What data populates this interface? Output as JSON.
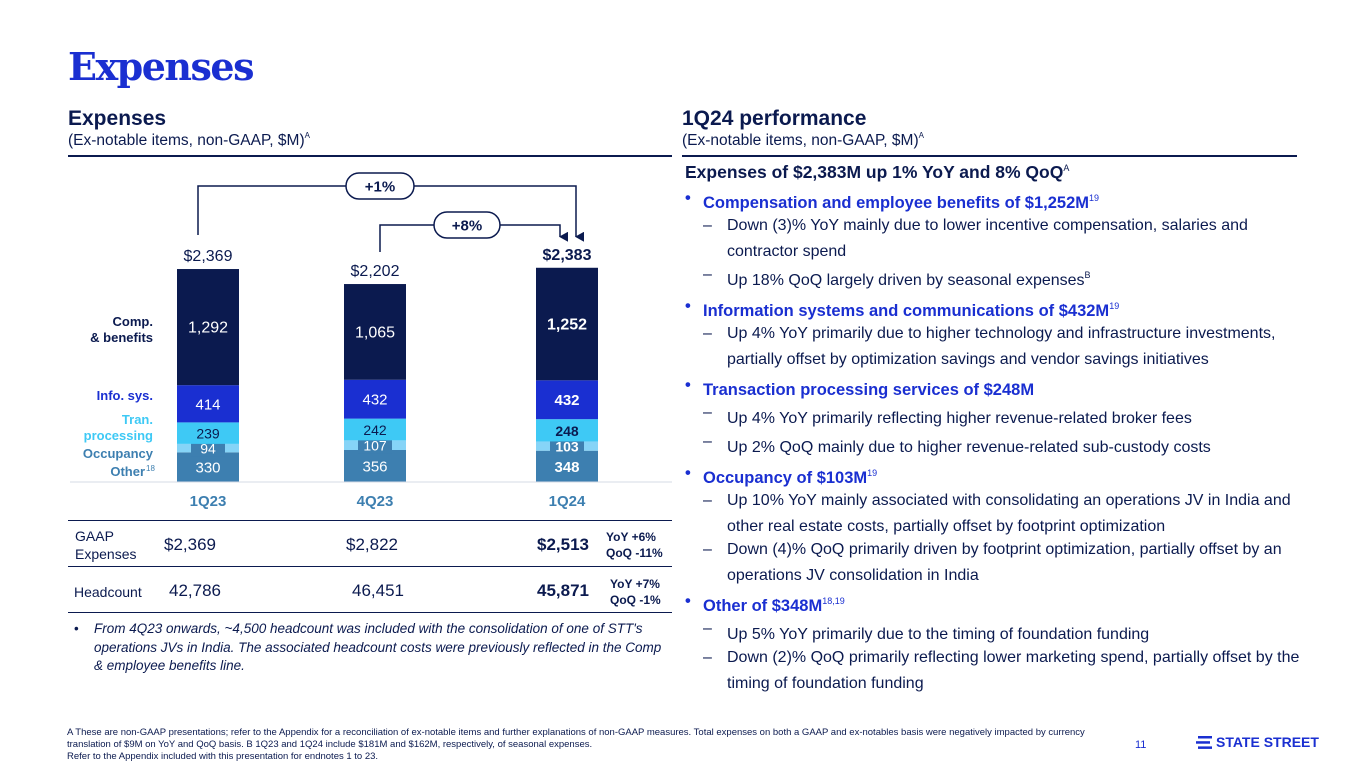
{
  "page_title": "Expenses",
  "left": {
    "heading": "Expenses",
    "sub": "(Ex-notable items, non-GAAP, $M)",
    "sub_sup": "A"
  },
  "right": {
    "heading": "1Q24 performance",
    "sub": "(Ex-notable items, non-GAAP, $M)",
    "sub_sup": "A"
  },
  "chart_data": {
    "type": "bar",
    "stacked": true,
    "categories": [
      "1Q23",
      "4Q23",
      "1Q24"
    ],
    "series": [
      {
        "name": "Other",
        "values": [
          330,
          356,
          348
        ],
        "color": "#3d7fb0"
      },
      {
        "name": "Occupancy",
        "values": [
          94,
          107,
          103
        ],
        "color": "#86d4f7"
      },
      {
        "name": "Tran. processing",
        "values": [
          239,
          242,
          248
        ],
        "color": "#3ec9f5"
      },
      {
        "name": "Info. sys.",
        "values": [
          414,
          432,
          432
        ],
        "color": "#1a2fd1"
      },
      {
        "name": "Comp. & benefits",
        "values": [
          1292,
          1065,
          1252
        ],
        "color": "#0b1a4f"
      }
    ],
    "value_labels": [
      [
        "330",
        "356",
        "348"
      ],
      [
        "94",
        "107",
        "103"
      ],
      [
        "239",
        "242",
        "248"
      ],
      [
        "414",
        "432",
        "432"
      ],
      [
        "1,292",
        "1,065",
        "1,252"
      ]
    ],
    "totals": [
      "$2,369",
      "$2,202",
      "$2,383"
    ],
    "total_values": [
      2369,
      2202,
      2383
    ],
    "legend_labels": [
      {
        "text": "Other",
        "sup": "18"
      },
      {
        "text": "Occupancy",
        "sup": ""
      },
      {
        "text": "Tran. processing",
        "sup": ""
      },
      {
        "text": "Info. sys.",
        "sup": ""
      },
      {
        "text": "Comp. & benefits",
        "sup": ""
      }
    ],
    "arrows": [
      {
        "label": "+1%",
        "from": "1Q23",
        "to": "1Q24"
      },
      {
        "label": "+8%",
        "from": "4Q23",
        "to": "1Q24"
      }
    ],
    "highlight_category": "1Q24"
  },
  "table": {
    "gaap_label": "GAAP Expenses",
    "gaap_values": [
      "$2,369",
      "$2,822",
      "$2,513"
    ],
    "gaap_yoy": "YoY +6%",
    "gaap_qoq": "QoQ -11%",
    "headcount_label": "Headcount",
    "headcount_values": [
      "42,786",
      "46,451",
      "45,871"
    ],
    "headcount_yoy": "YoY +7%",
    "headcount_qoq": "QoQ -1%"
  },
  "note": "From 4Q23 onwards, ~4,500 headcount was included with the consolidation of one of STT's operations JVs in India. The associated headcount costs were previously reflected in the Comp & employee benefits line.",
  "performance": {
    "headline": "Expenses of $2,383M up 1% YoY and 8% QoQ",
    "headline_sup": "A",
    "items": [
      {
        "title": "Compensation and employee benefits of $1,252M",
        "sup": "19",
        "subs": [
          {
            "text": "Down (3)% YoY mainly due to lower incentive compensation, salaries and contractor spend",
            "sup": ""
          },
          {
            "text": "Up 18% QoQ largely driven by seasonal expenses",
            "sup": "B"
          }
        ]
      },
      {
        "title": "Information systems and communications of $432M",
        "sup": "19",
        "subs": [
          {
            "text": "Up 4% YoY primarily due to higher technology and infrastructure investments, partially offset by optimization savings and vendor savings initiatives",
            "sup": ""
          }
        ]
      },
      {
        "title": "Transaction processing services of $248M",
        "sup": "",
        "subs": [
          {
            "text": "Up 4% YoY primarily reflecting higher revenue-related broker fees",
            "sup": ""
          },
          {
            "text": "Up 2% QoQ mainly due to higher revenue-related sub-custody costs",
            "sup": ""
          }
        ]
      },
      {
        "title": "Occupancy of $103M",
        "sup": "19",
        "subs": [
          {
            "text": "Up 10% YoY mainly associated with consolidating an operations JV in India and other real estate costs, partially offset by footprint optimization",
            "sup": ""
          },
          {
            "text": "Down (4)% QoQ primarily driven by footprint optimization, partially offset by an operations JV consolidation in India",
            "sup": ""
          }
        ]
      },
      {
        "title": "Other of $348M",
        "sup": "18,19",
        "subs": [
          {
            "text": "Up 5% YoY primarily due to the timing of foundation funding",
            "sup": ""
          },
          {
            "text": "Down (2)% QoQ primarily reflecting lower marketing spend, partially offset by the timing of foundation funding",
            "sup": ""
          }
        ]
      }
    ]
  },
  "footnote": {
    "line1": "A These are non-GAAP presentations; refer to the Appendix for a reconciliation of ex-notable items and further explanations of non-GAAP measures. Total expenses on both a GAAP and ex-notables basis were negatively impacted by currency translation of $9M on YoY and QoQ basis. B 1Q23 and 1Q24 include $181M and $162M, respectively, of seasonal expenses.",
    "line2": "Refer to the Appendix included with this presentation for endnotes 1 to 23."
  },
  "page_number": "11",
  "logo_text": "STATE STREET"
}
